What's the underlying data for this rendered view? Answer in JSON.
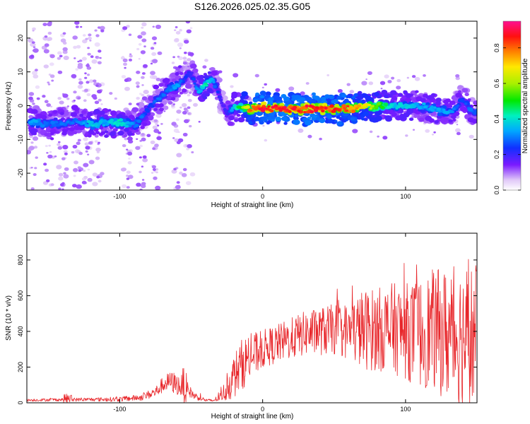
{
  "title": "S126.2026.025.02.35.G05",
  "chart_data": [
    {
      "type": "heatmap",
      "xlabel": "Height of straight line (km)",
      "ylabel": "Frequency (Hz)",
      "xlim": [
        -165,
        150
      ],
      "ylim": [
        -25,
        25
      ],
      "xticks": [
        -100,
        0,
        100
      ],
      "yticks": [
        -20,
        -10,
        0,
        10,
        20
      ],
      "colorbar": {
        "label": "Normalized spectral amplitude",
        "range": [
          0.0,
          0.95
        ],
        "ticks": [
          0.0,
          0.2,
          0.4,
          0.6,
          0.8
        ]
      },
      "ridge": {
        "heights_km": [
          -160,
          -150,
          -140,
          -130,
          -120,
          -110,
          -100,
          -90,
          -85,
          -80,
          -75,
          -70,
          -65,
          -60,
          -55,
          -50,
          -45,
          -40,
          -35,
          -30,
          -25,
          -20,
          -15,
          -10,
          0,
          20,
          40,
          60,
          80,
          90,
          100,
          110,
          120,
          130,
          135,
          140,
          145,
          148
        ],
        "frequency_hz": [
          -5,
          -5.5,
          -5,
          -5,
          -5.5,
          -5,
          -5,
          -5.5,
          -4,
          -1,
          1,
          3,
          5,
          6,
          8,
          10,
          4,
          6,
          8,
          3,
          -3,
          0,
          0,
          -1,
          -0.5,
          -1,
          -1,
          -1,
          0,
          0,
          0,
          0,
          -1,
          -2,
          -1,
          2,
          -1,
          -2
        ],
        "amplitude": [
          0.35,
          0.3,
          0.3,
          0.3,
          0.4,
          0.35,
          0.45,
          0.3,
          0.3,
          0.25,
          0.3,
          0.3,
          0.3,
          0.35,
          0.25,
          0.2,
          0.35,
          0.45,
          0.35,
          0.2,
          0.2,
          0.4,
          0.55,
          0.8,
          0.92,
          0.9,
          0.9,
          0.85,
          0.6,
          0.4,
          0.4,
          0.35,
          0.35,
          0.35,
          0.3,
          0.25,
          0.3,
          0.3
        ]
      }
    },
    {
      "type": "line",
      "xlabel": "Height of straight line (km)",
      "ylabel": "SNR (10 * v/v)",
      "xlim": [
        -165,
        150
      ],
      "ylim": [
        0,
        950
      ],
      "xticks": [
        -100,
        0,
        100
      ],
      "yticks": [
        0,
        200,
        400,
        600,
        800
      ],
      "color": "#e8262a",
      "envelope": {
        "x": [
          -165,
          -140,
          -138,
          -130,
          -100,
          -85,
          -75,
          -70,
          -65,
          -62,
          -57,
          -55,
          -52,
          -48,
          -40,
          -35,
          -30,
          -25,
          -20,
          -15,
          -10,
          0,
          10,
          20,
          30,
          40,
          50,
          60,
          70,
          80,
          90,
          100,
          110,
          120,
          130,
          140,
          150
        ],
        "mean": [
          15,
          18,
          25,
          18,
          20,
          30,
          60,
          100,
          120,
          110,
          90,
          100,
          70,
          40,
          15,
          12,
          30,
          80,
          150,
          210,
          250,
          300,
          330,
          360,
          390,
          400,
          410,
          400,
          410,
          410,
          420,
          400,
          390,
          410,
          380,
          380,
          370
        ],
        "amplitude": [
          8,
          10,
          40,
          10,
          15,
          20,
          35,
          50,
          60,
          70,
          60,
          150,
          40,
          25,
          10,
          8,
          25,
          80,
          140,
          160,
          150,
          120,
          120,
          130,
          140,
          150,
          160,
          180,
          250,
          260,
          280,
          300,
          340,
          380,
          420,
          450,
          480
        ]
      }
    }
  ]
}
